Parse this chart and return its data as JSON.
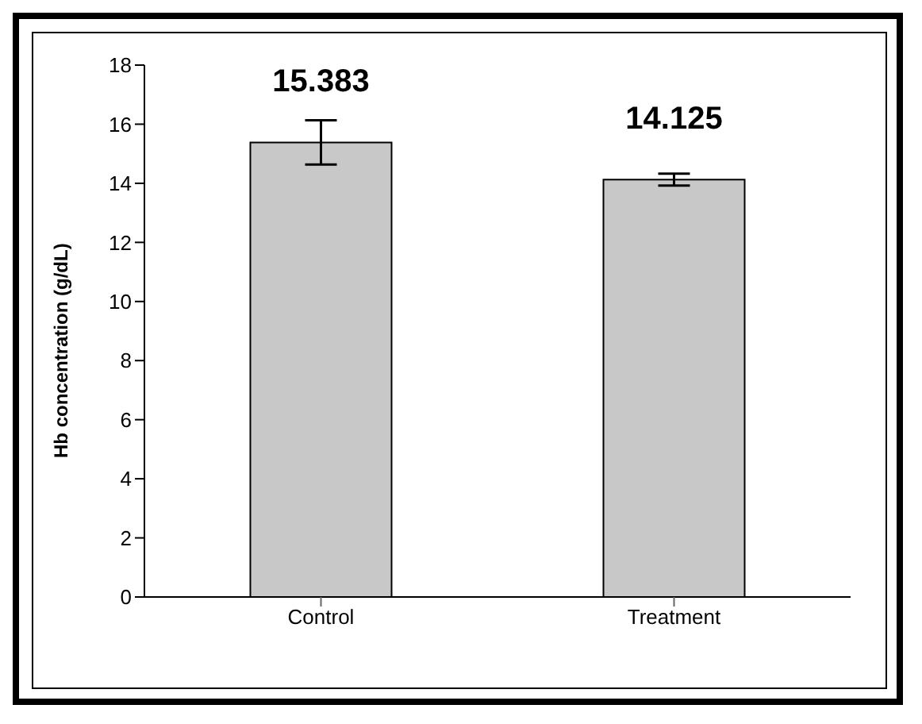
{
  "chart_data": {
    "type": "bar",
    "ylabel": "Hb concentration (g/dL)",
    "categories": [
      "Control",
      "Treatment"
    ],
    "values": [
      15.383,
      14.125
    ],
    "errors": [
      0.75,
      0.2
    ],
    "color": "#c8c8c8",
    "ylim": [
      0,
      18
    ],
    "yticks": [
      0,
      2,
      4,
      6,
      8,
      10,
      12,
      14,
      16,
      18
    ],
    "data_labels": true
  }
}
